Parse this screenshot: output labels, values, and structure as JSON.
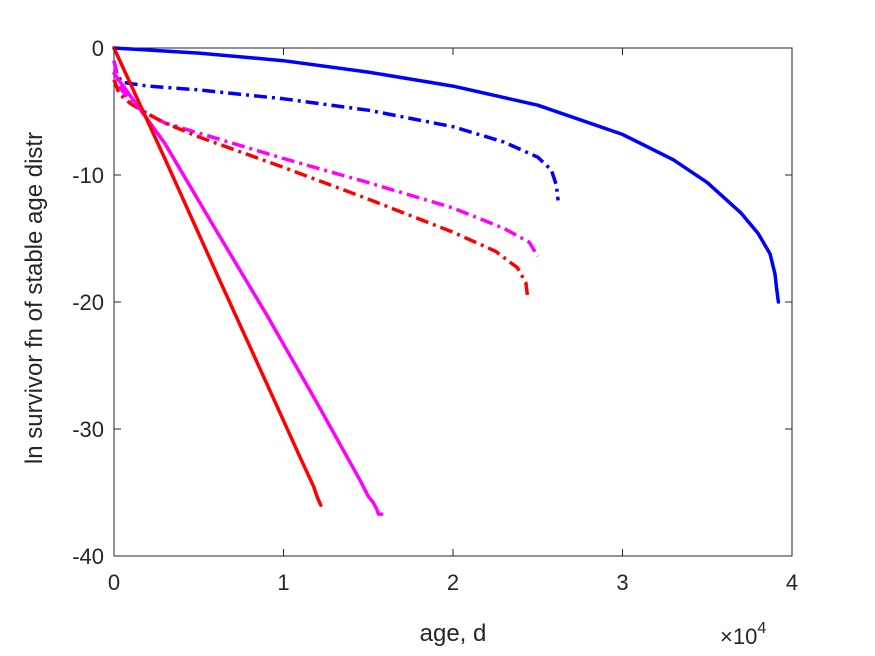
{
  "chart_data": {
    "type": "line",
    "title": "",
    "xlabel": "age, d",
    "ylabel": "ln survivor fn of stable age distr",
    "x_exponent": "4",
    "x_multiplier_sign": "×10",
    "xlim": [
      0,
      40000
    ],
    "ylim": [
      -40,
      0
    ],
    "x_ticks": [
      0,
      10000,
      20000,
      30000,
      40000
    ],
    "x_tick_labels": [
      "0",
      "1",
      "2",
      "3",
      "4"
    ],
    "y_ticks": [
      0,
      -10,
      -20,
      -30,
      -40
    ],
    "y_tick_labels": [
      "0",
      "-10",
      "-20",
      "-30",
      "-40"
    ],
    "grid": false,
    "legend": "none",
    "series": [
      {
        "color": "#0000ff",
        "style": "solid",
        "points": [
          [
            0,
            0
          ],
          [
            5000,
            -0.4
          ],
          [
            10000,
            -1.0
          ],
          [
            15000,
            -1.9
          ],
          [
            20000,
            -3.0
          ],
          [
            25000,
            -4.5
          ],
          [
            30000,
            -6.8
          ],
          [
            33000,
            -8.8
          ],
          [
            35000,
            -10.6
          ],
          [
            37000,
            -13.0
          ],
          [
            38000,
            -14.6
          ],
          [
            38700,
            -16.2
          ],
          [
            39000,
            -17.8
          ],
          [
            39100,
            -19.0
          ],
          [
            39200,
            -20.0
          ]
        ]
      },
      {
        "color": "#0000ff",
        "style": "dashdot",
        "points": [
          [
            0,
            -1.0
          ],
          [
            200,
            -2.2
          ],
          [
            500,
            -2.7
          ],
          [
            2000,
            -3.0
          ],
          [
            5000,
            -3.3
          ],
          [
            10000,
            -4.0
          ],
          [
            15000,
            -4.9
          ],
          [
            20000,
            -6.2
          ],
          [
            23000,
            -7.4
          ],
          [
            25000,
            -8.6
          ],
          [
            25800,
            -9.6
          ],
          [
            26100,
            -10.8
          ],
          [
            26200,
            -12.0
          ]
        ]
      },
      {
        "color": "#ff00ff",
        "style": "dashdot",
        "points": [
          [
            0,
            -1.0
          ],
          [
            300,
            -3.0
          ],
          [
            1000,
            -4.3
          ],
          [
            2000,
            -5.2
          ],
          [
            3000,
            -5.9
          ],
          [
            5000,
            -6.7
          ],
          [
            10000,
            -8.7
          ],
          [
            15000,
            -10.6
          ],
          [
            20000,
            -12.6
          ],
          [
            23000,
            -14.2
          ],
          [
            24500,
            -15.3
          ],
          [
            25000,
            -16.4
          ]
        ]
      },
      {
        "color": "#ff0000",
        "style": "dashdot",
        "points": [
          [
            0,
            -2.5
          ],
          [
            300,
            -3.6
          ],
          [
            1000,
            -4.4
          ],
          [
            2000,
            -5.2
          ],
          [
            3000,
            -5.9
          ],
          [
            5000,
            -7.0
          ],
          [
            10000,
            -9.4
          ],
          [
            15000,
            -11.9
          ],
          [
            20000,
            -14.5
          ],
          [
            22500,
            -16.0
          ],
          [
            23800,
            -17.3
          ],
          [
            24300,
            -18.5
          ],
          [
            24400,
            -19.6
          ]
        ]
      },
      {
        "color": "#ff00ff",
        "style": "solid",
        "points": [
          [
            0,
            -2.0
          ],
          [
            3000,
            -7.5
          ],
          [
            6000,
            -14.3
          ],
          [
            9000,
            -21.0
          ],
          [
            12000,
            -28.0
          ],
          [
            14500,
            -34.0
          ],
          [
            15000,
            -35.3
          ],
          [
            15300,
            -35.8
          ],
          [
            15500,
            -36.3
          ],
          [
            15600,
            -36.7
          ],
          [
            15800,
            -36.7
          ]
        ]
      },
      {
        "color": "#ff0000",
        "style": "solid",
        "points": [
          [
            0,
            0
          ],
          [
            3000,
            -8.7
          ],
          [
            6000,
            -17.6
          ],
          [
            9000,
            -26.4
          ],
          [
            11000,
            -32.3
          ],
          [
            11800,
            -34.6
          ],
          [
            12000,
            -35.4
          ],
          [
            12200,
            -36.0
          ]
        ]
      }
    ]
  }
}
